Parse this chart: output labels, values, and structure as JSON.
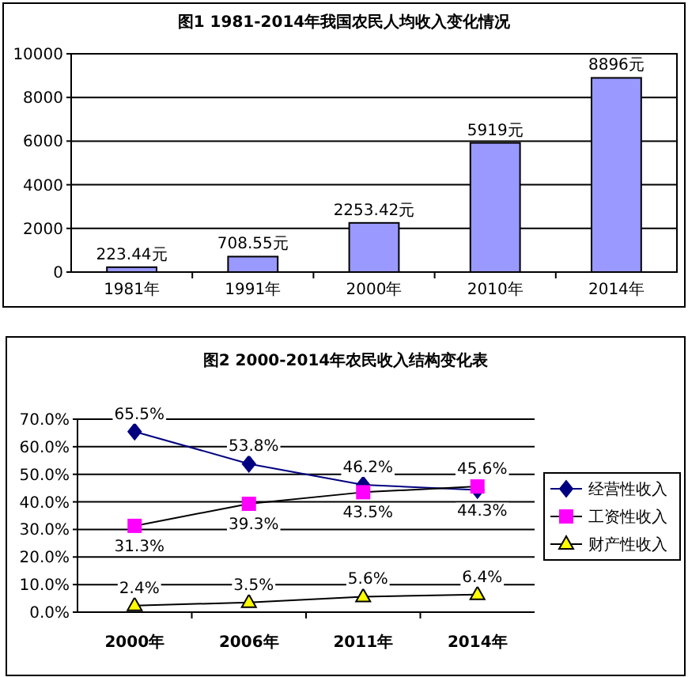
{
  "chart_data": [
    {
      "type": "bar",
      "title": "图1 1981-2014年我国农民人均收入变化情况",
      "categories": [
        "1981年",
        "1991年",
        "2000年",
        "2010年",
        "2014年"
      ],
      "values": [
        223.44,
        708.55,
        2253.42,
        5919,
        8896
      ],
      "value_labels": [
        "223.44元",
        "708.55元",
        "2253.42元",
        "5919元",
        "8896元"
      ],
      "color": "#9999ff",
      "ylim": [
        0,
        10000
      ],
      "yticks": [
        0,
        2000,
        4000,
        6000,
        8000,
        10000
      ],
      "grid": "y"
    },
    {
      "type": "line",
      "title": "图2 2000-2014年农民收入结构变化表",
      "categories": [
        "2000年",
        "2006年",
        "2011年",
        "2014年"
      ],
      "ylim": [
        0,
        70
      ],
      "yticks": [
        {
          "value": 0,
          "label": "0.0%"
        },
        {
          "value": 10,
          "label": "10.0%"
        },
        {
          "value": 20,
          "label": "20.0%"
        },
        {
          "value": 30,
          "label": "30.0%"
        },
        {
          "value": 40,
          "label": "40.0%"
        },
        {
          "value": 50,
          "label": "50.0%"
        },
        {
          "value": 60,
          "label": "60.0%"
        },
        {
          "value": 70,
          "label": "70.0%"
        }
      ],
      "grid": "y",
      "legend": "right",
      "series": [
        {
          "name": "经营性收入",
          "color": "#000080",
          "marker": "diamond",
          "values": [
            65.5,
            53.8,
            46.2,
            44.3
          ],
          "value_labels": [
            "65.5%",
            "53.8%",
            "46.2%",
            "44.3%"
          ]
        },
        {
          "name": "工资性收入",
          "color": "#ff00ff",
          "marker": "square",
          "values": [
            31.3,
            39.3,
            43.5,
            45.6
          ],
          "value_labels": [
            "31.3%",
            "39.3%",
            "43.5%",
            "45.6%"
          ]
        },
        {
          "name": "财产性收入",
          "color": "#ffff00",
          "marker": "triangle",
          "values": [
            2.4,
            3.5,
            5.6,
            6.4
          ],
          "value_labels": [
            "2.4%",
            "3.5%",
            "5.6%",
            "6.4%"
          ]
        }
      ]
    }
  ]
}
